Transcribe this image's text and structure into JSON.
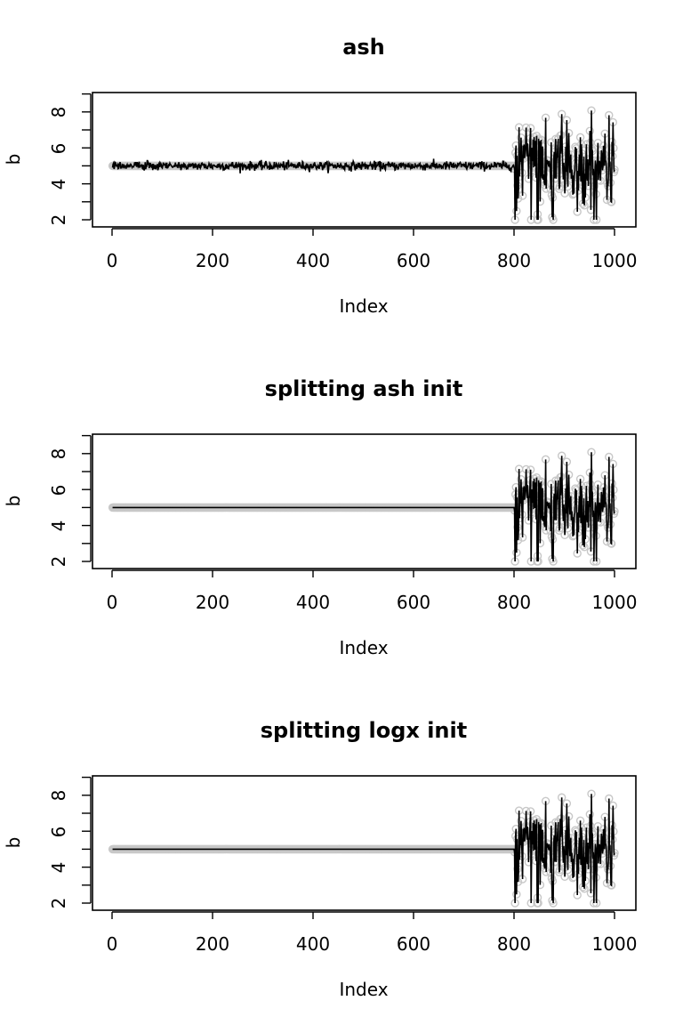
{
  "colors": {
    "points": "#c8c8c8",
    "line": "#000000",
    "background": "#ffffff"
  },
  "chart_data": [
    {
      "type": "scatter",
      "title": "ash",
      "xlabel": "Index",
      "ylabel": "b",
      "xlim": [
        0,
        1000
      ],
      "ylim": [
        1.8,
        9.2
      ],
      "x_ticks": [
        "0",
        "200",
        "400",
        "600",
        "800",
        "1000"
      ],
      "y_ticks": [
        "2",
        "4",
        "6",
        "8"
      ],
      "grid": false,
      "series": [
        {
          "role": "points",
          "description": "open grey circles: 5.0 for index 1-800, noisy values 2-8.8 for index 801-1000"
        },
        {
          "role": "line",
          "description": "black line: fitted values, approx 5 with small noise (sd ~0.12) for index 1-800, follows data for 801-1000"
        }
      ]
    },
    {
      "type": "scatter",
      "title": "splitting ash init",
      "xlabel": "Index",
      "ylabel": "b",
      "xlim": [
        0,
        1000
      ],
      "ylim": [
        1.8,
        9.2
      ],
      "x_ticks": [
        "0",
        "200",
        "400",
        "600",
        "800",
        "1000"
      ],
      "y_ticks": [
        "2",
        "4",
        "6",
        "8"
      ],
      "grid": false,
      "series": [
        {
          "role": "points",
          "description": "open grey circles: 5.0 for index 1-800, noisy values 2-8.8 for index 801-1000"
        },
        {
          "role": "line",
          "description": "black line: flat at 5 for index 1-800, follows data for 801-1000"
        }
      ]
    },
    {
      "type": "scatter",
      "title": "splitting logx init",
      "xlabel": "Index",
      "ylabel": "b",
      "xlim": [
        0,
        1000
      ],
      "ylim": [
        1.8,
        9.2
      ],
      "x_ticks": [
        "0",
        "200",
        "400",
        "600",
        "800",
        "1000"
      ],
      "y_ticks": [
        "2",
        "4",
        "6",
        "8"
      ],
      "grid": false,
      "series": [
        {
          "role": "points",
          "description": "open grey circles: 5.0 for index 1-800, noisy values 2-8.8 for index 801-1000"
        },
        {
          "role": "line",
          "description": "black line: flat at 5 for index 1-800, follows data for 801-1000"
        }
      ]
    }
  ]
}
